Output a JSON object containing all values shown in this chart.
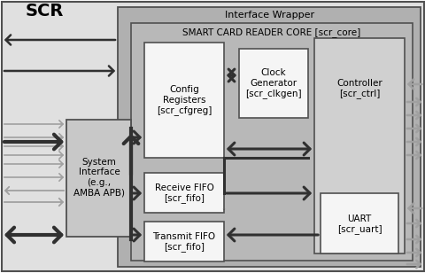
{
  "title_scr": "SCR",
  "title_interface_wrapper": "Interface Wrapper",
  "title_smart_core": "SMART CARD READER CORE [scr_core]",
  "box_system_interface": "System\nInterface\n(e.g.,\nAMBA APB)",
  "box_config_reg": "Config\nRegisters\n[scr_cfgreg]",
  "box_clock_gen": "Clock\nGenerator\n[scr_clkgen]",
  "box_controller": "Controller\n[scr_ctrl]",
  "box_receive_fifo": "Receive FIFO\n[scr_fifo]",
  "box_transmit_fifo": "Transmit FIFO\n[scr_fifo]",
  "box_uart": "UART\n[scr_uart]",
  "color_outer_bg": "#e0e0e0",
  "color_wrapper_bg": "#b0b0b0",
  "color_core_bg": "#b8b8b8",
  "color_controller_bg": "#d0d0d0",
  "color_white_box": "#f5f5f5",
  "color_sys_iface_bg": "#c8c8c8",
  "color_arrow_dark": "#303030",
  "color_arrow_light": "#a0a0a0",
  "color_border": "#404040",
  "color_text": "#000000",
  "figsize": [
    4.81,
    3.08
  ],
  "dpi": 100
}
